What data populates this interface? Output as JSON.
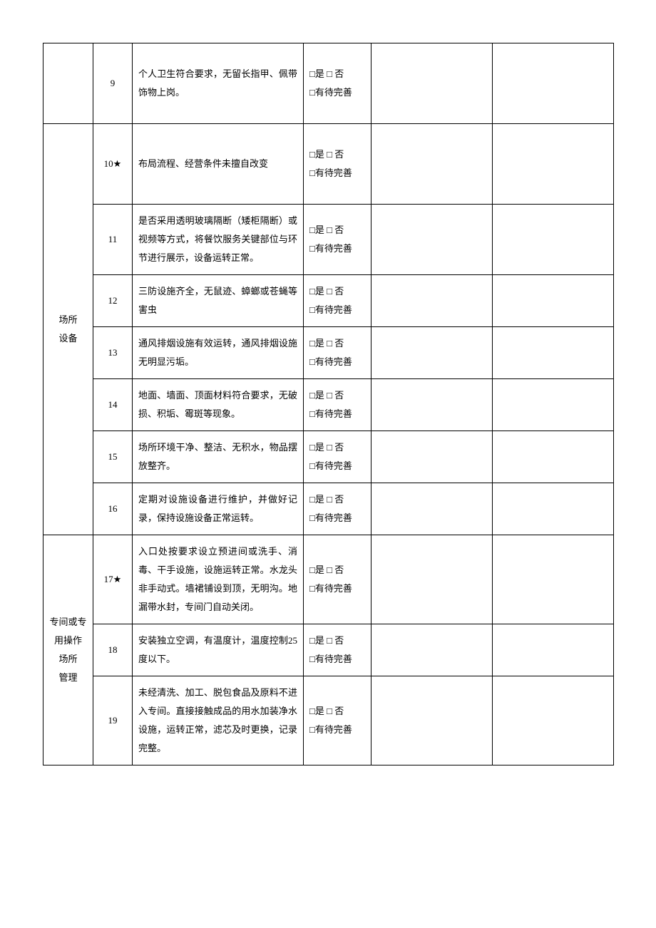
{
  "checks": {
    "line1": "□是 □ 否",
    "line2": "□有待完善"
  },
  "categories": {
    "c1": "场所\n设备",
    "c2": "专间或专\n用操作\n场所\n管理"
  },
  "rows": [
    {
      "num": "9",
      "desc": "个人卫生符合要求，无留长指甲、佩带饰物上岗。",
      "tall": true
    },
    {
      "num": "10★",
      "desc": "布局流程、经营条件未擅自改变",
      "tall": true
    },
    {
      "num": "11",
      "desc": "是否采用透明玻璃隔断（矮柜隔断）或视频等方式，将餐饮服务关键部位与环节进行展示，设备运转正常。"
    },
    {
      "num": "12",
      "desc": "三防设施齐全，无鼠迹、蟑螂或苍蝇等害虫"
    },
    {
      "num": "13",
      "desc": "通风排烟设施有效运转，通风排烟设施无明显污垢。"
    },
    {
      "num": "14",
      "desc": "地面、墙面、顶面材料符合要求，无破损、积垢、霉斑等现象。"
    },
    {
      "num": "15",
      "desc": "场所环境干净、整洁、无积水，物品摆放整齐。"
    },
    {
      "num": "16",
      "desc": "定期对设施设备进行维护，并做好记录，保持设施设备正常运转。"
    },
    {
      "num": "17★",
      "desc": "入口处按要求设立预进间或洗手、消毒、干手设施，设施运转正常。水龙头非手动式。墙裙铺设到顶，无明沟。地漏带水封，专间门自动关闭。"
    },
    {
      "num": "18",
      "desc": "安装独立空调，有温度计，温度控制25 度以下。"
    },
    {
      "num": "19",
      "desc": "未经清洗、加工、脱包食品及原料不进入专间。直接接触成品的用水加装净水设施，运转正常，滤芯及时更换，记录完整。"
    }
  ]
}
